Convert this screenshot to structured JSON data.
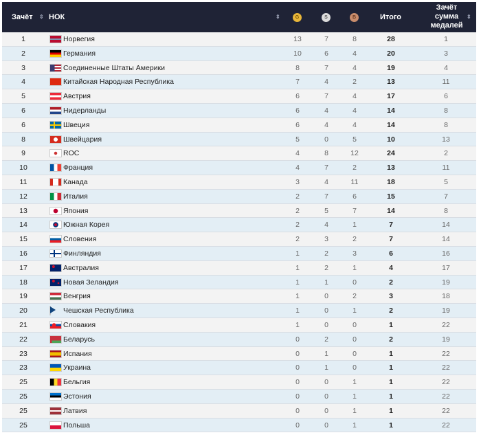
{
  "header": {
    "rank": "Зачёт",
    "noc": "НОК",
    "gold": "G",
    "silver": "S",
    "bronze": "B",
    "total": "Итого",
    "rank_total": "Зачёт сумма медалей",
    "sort_icon": "⇕"
  },
  "colors": {
    "header_bg": "#1f2336",
    "gold": "#e8b63a",
    "silver": "#d8d8d8",
    "bronze": "#c98d6c"
  },
  "rows": [
    {
      "rank": "1",
      "flag": "no",
      "name": "Норвегия",
      "g": "13",
      "s": "7",
      "b": "8",
      "t": "28",
      "z": "1"
    },
    {
      "rank": "2",
      "flag": "de",
      "name": "Германия",
      "g": "10",
      "s": "6",
      "b": "4",
      "t": "20",
      "z": "3"
    },
    {
      "rank": "3",
      "flag": "us",
      "name": "Соединенные Штаты Америки",
      "g": "8",
      "s": "7",
      "b": "4",
      "t": "19",
      "z": "4"
    },
    {
      "rank": "4",
      "flag": "cn",
      "name": "Китайская Народная Республика",
      "g": "7",
      "s": "4",
      "b": "2",
      "t": "13",
      "z": "11"
    },
    {
      "rank": "5",
      "flag": "at",
      "name": "Австрия",
      "g": "6",
      "s": "7",
      "b": "4",
      "t": "17",
      "z": "6"
    },
    {
      "rank": "6",
      "flag": "nl",
      "name": "Нидерланды",
      "g": "6",
      "s": "4",
      "b": "4",
      "t": "14",
      "z": "8"
    },
    {
      "rank": "6",
      "flag": "se",
      "name": "Швеция",
      "g": "6",
      "s": "4",
      "b": "4",
      "t": "14",
      "z": "8"
    },
    {
      "rank": "8",
      "flag": "ch",
      "name": "Швейцария",
      "g": "5",
      "s": "0",
      "b": "5",
      "t": "10",
      "z": "13"
    },
    {
      "rank": "9",
      "flag": "roc",
      "name": "ROC",
      "g": "4",
      "s": "8",
      "b": "12",
      "t": "24",
      "z": "2"
    },
    {
      "rank": "10",
      "flag": "fr",
      "name": "Франция",
      "g": "4",
      "s": "7",
      "b": "2",
      "t": "13",
      "z": "11"
    },
    {
      "rank": "11",
      "flag": "ca",
      "name": "Канада",
      "g": "3",
      "s": "4",
      "b": "11",
      "t": "18",
      "z": "5"
    },
    {
      "rank": "12",
      "flag": "it",
      "name": "Италия",
      "g": "2",
      "s": "7",
      "b": "6",
      "t": "15",
      "z": "7"
    },
    {
      "rank": "13",
      "flag": "jp",
      "name": "Япония",
      "g": "2",
      "s": "5",
      "b": "7",
      "t": "14",
      "z": "8"
    },
    {
      "rank": "14",
      "flag": "kr",
      "name": "Южная Корея",
      "g": "2",
      "s": "4",
      "b": "1",
      "t": "7",
      "z": "14"
    },
    {
      "rank": "15",
      "flag": "si",
      "name": "Словения",
      "g": "2",
      "s": "3",
      "b": "2",
      "t": "7",
      "z": "14"
    },
    {
      "rank": "16",
      "flag": "fi",
      "name": "Финляндия",
      "g": "1",
      "s": "2",
      "b": "3",
      "t": "6",
      "z": "16"
    },
    {
      "rank": "17",
      "flag": "au",
      "name": "Австралия",
      "g": "1",
      "s": "2",
      "b": "1",
      "t": "4",
      "z": "17"
    },
    {
      "rank": "18",
      "flag": "nz",
      "name": "Новая Зеландия",
      "g": "1",
      "s": "1",
      "b": "0",
      "t": "2",
      "z": "19"
    },
    {
      "rank": "19",
      "flag": "hu",
      "name": "Венгрия",
      "g": "1",
      "s": "0",
      "b": "2",
      "t": "3",
      "z": "18"
    },
    {
      "rank": "20",
      "flag": "cz",
      "name": "Чешская Республика",
      "g": "1",
      "s": "0",
      "b": "1",
      "t": "2",
      "z": "19"
    },
    {
      "rank": "21",
      "flag": "sk",
      "name": "Словакия",
      "g": "1",
      "s": "0",
      "b": "0",
      "t": "1",
      "z": "22"
    },
    {
      "rank": "22",
      "flag": "by",
      "name": "Беларусь",
      "g": "0",
      "s": "2",
      "b": "0",
      "t": "2",
      "z": "19"
    },
    {
      "rank": "23",
      "flag": "es",
      "name": "Испания",
      "g": "0",
      "s": "1",
      "b": "0",
      "t": "1",
      "z": "22"
    },
    {
      "rank": "23",
      "flag": "ua",
      "name": "Украина",
      "g": "0",
      "s": "1",
      "b": "0",
      "t": "1",
      "z": "22"
    },
    {
      "rank": "25",
      "flag": "be",
      "name": "Бельгия",
      "g": "0",
      "s": "0",
      "b": "1",
      "t": "1",
      "z": "22"
    },
    {
      "rank": "25",
      "flag": "ee",
      "name": "Эстония",
      "g": "0",
      "s": "0",
      "b": "1",
      "t": "1",
      "z": "22"
    },
    {
      "rank": "25",
      "flag": "lv",
      "name": "Латвия",
      "g": "0",
      "s": "0",
      "b": "1",
      "t": "1",
      "z": "22"
    },
    {
      "rank": "25",
      "flag": "pl",
      "name": "Польша",
      "g": "0",
      "s": "0",
      "b": "1",
      "t": "1",
      "z": "22"
    }
  ]
}
